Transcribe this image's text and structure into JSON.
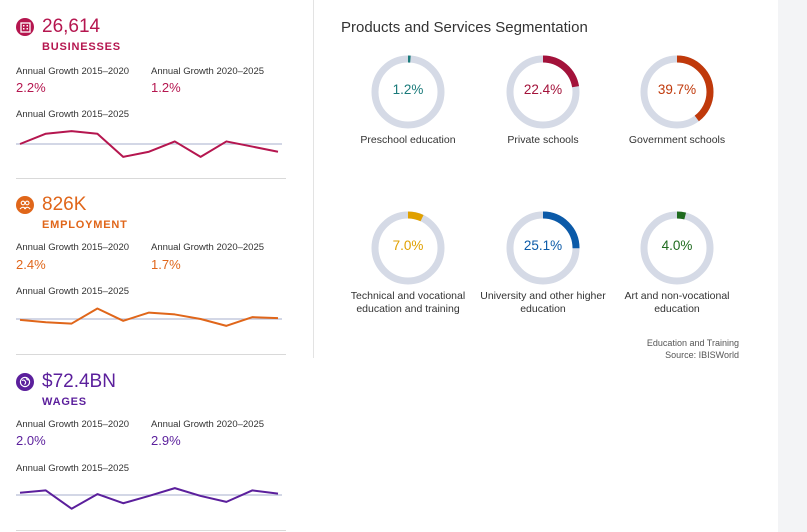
{
  "metrics": [
    {
      "value": "26,614",
      "label": "BUSINESSES",
      "color": "#b5164f",
      "icon": "building-icon",
      "growth_a_label": "Annual Growth 2015–2020",
      "growth_a_value": "2.2%",
      "growth_b_label": "Annual Growth 2020–2025",
      "growth_b_value": "1.2%",
      "spark_label": "Annual Growth 2015–2025"
    },
    {
      "value": "826K",
      "label": "EMPLOYMENT",
      "color": "#e0661a",
      "icon": "people-icon",
      "growth_a_label": "Annual Growth 2015–2020",
      "growth_a_value": "2.4%",
      "growth_b_label": "Annual Growth 2020–2025",
      "growth_b_value": "1.7%",
      "spark_label": "Annual Growth 2015–2025"
    },
    {
      "value": "$72.4BN",
      "label": "WAGES",
      "color": "#5b1f9c",
      "icon": "globe-icon",
      "growth_a_label": "Annual Growth 2015–2020",
      "growth_a_value": "2.0%",
      "growth_b_label": "Annual Growth 2020–2025",
      "growth_b_value": "2.9%",
      "spark_label": "Annual Growth 2015–2025"
    }
  ],
  "segmentation": {
    "title": "Products and Services Segmentation",
    "source_line1": "Education and Training",
    "source_line2": "Source: IBISWorld"
  },
  "chart_data": [
    {
      "type": "line",
      "title": "Businesses annual growth 2015–2025",
      "series": [
        {
          "name": "Businesses",
          "values": [
            0.0,
            2.0,
            2.5,
            2.0,
            -2.5,
            -1.5,
            0.5,
            -2.5,
            0.5,
            -0.5,
            -1.5
          ]
        }
      ],
      "baseline": 0,
      "ylim": [
        -3.5,
        3.5
      ],
      "color": "#b5164f"
    },
    {
      "type": "line",
      "title": "Employment annual growth 2015–2025",
      "series": [
        {
          "name": "Employment",
          "values": [
            -0.2,
            -0.7,
            -1.0,
            2.3,
            -0.4,
            1.4,
            1.0,
            0.0,
            -1.5,
            0.4,
            0.2
          ]
        }
      ],
      "baseline": 0,
      "ylim": [
        -3.5,
        3.5
      ],
      "color": "#e0661a"
    },
    {
      "type": "line",
      "title": "Wages annual growth 2015–2025",
      "series": [
        {
          "name": "Wages",
          "values": [
            0.5,
            1.0,
            -3.0,
            0.2,
            -1.8,
            -0.2,
            1.5,
            -0.2,
            -1.5,
            1.0,
            0.3
          ]
        }
      ],
      "baseline": 0,
      "ylim": [
        -3.5,
        3.5
      ],
      "color": "#5b1f9c"
    },
    {
      "type": "pie",
      "title": "Products and Services Segmentation",
      "categories": [
        "Preschool education",
        "Private schools",
        "Government schools",
        "Technical and vocational education and training",
        "University and other higher education",
        "Art and non-vocational education"
      ],
      "values": [
        1.2,
        22.4,
        39.7,
        7.0,
        25.1,
        4.0
      ],
      "labels": [
        "1.2%",
        "22.4%",
        "39.7%",
        "7.0%",
        "25.1%",
        "4.0%"
      ],
      "colors": [
        "#1a7a7a",
        "#a3123a",
        "#c0390b",
        "#e0a000",
        "#0b5aa8",
        "#1f6b1f"
      ]
    }
  ]
}
